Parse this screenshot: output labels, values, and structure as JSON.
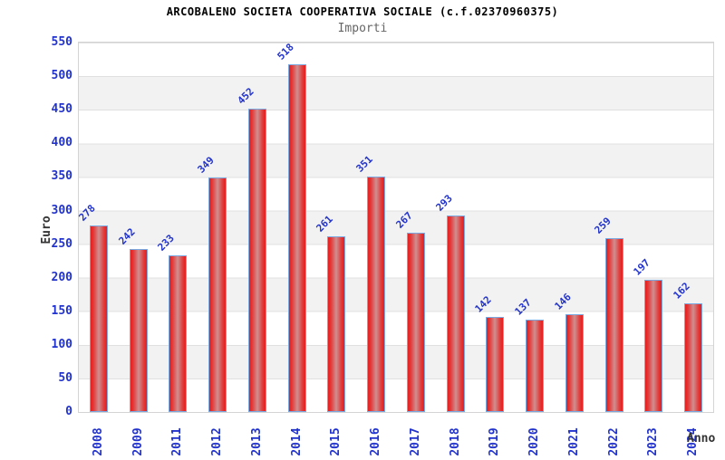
{
  "chart_data": {
    "type": "bar",
    "title": "ARCOBALENO SOCIETA COOPERATIVA SOCIALE (c.f.02370960375)",
    "subtitle": "Importi",
    "xlabel": "Anno",
    "ylabel": "Euro",
    "categories": [
      "2008",
      "2009",
      "2011",
      "2012",
      "2013",
      "2014",
      "2015",
      "2016",
      "2017",
      "2018",
      "2019",
      "2020",
      "2021",
      "2022",
      "2023",
      "2024"
    ],
    "values": [
      278,
      242,
      233,
      349,
      452,
      518,
      261,
      351,
      267,
      293,
      142,
      137,
      146,
      259,
      197,
      162
    ],
    "ylim": [
      0,
      550
    ],
    "ytick_step": 50,
    "grid": true,
    "legend": "none",
    "band_fill_alternating": true,
    "value_labels_rotated_45deg": true,
    "x_labels_rotated_90deg": true,
    "colors": {
      "bar_edge": "#e71d1d",
      "bar_highlight": "#cf8f8f",
      "bar_border": "#7aa8e0",
      "axis_label_blue": "#2233cc",
      "band_gray": "#f2f2f2",
      "gridline": "#e0e0e0",
      "plot_border": "#d4d4d4",
      "title_color": "#000000",
      "subtitle_color": "#666666",
      "axis_title_color": "#333333"
    }
  }
}
